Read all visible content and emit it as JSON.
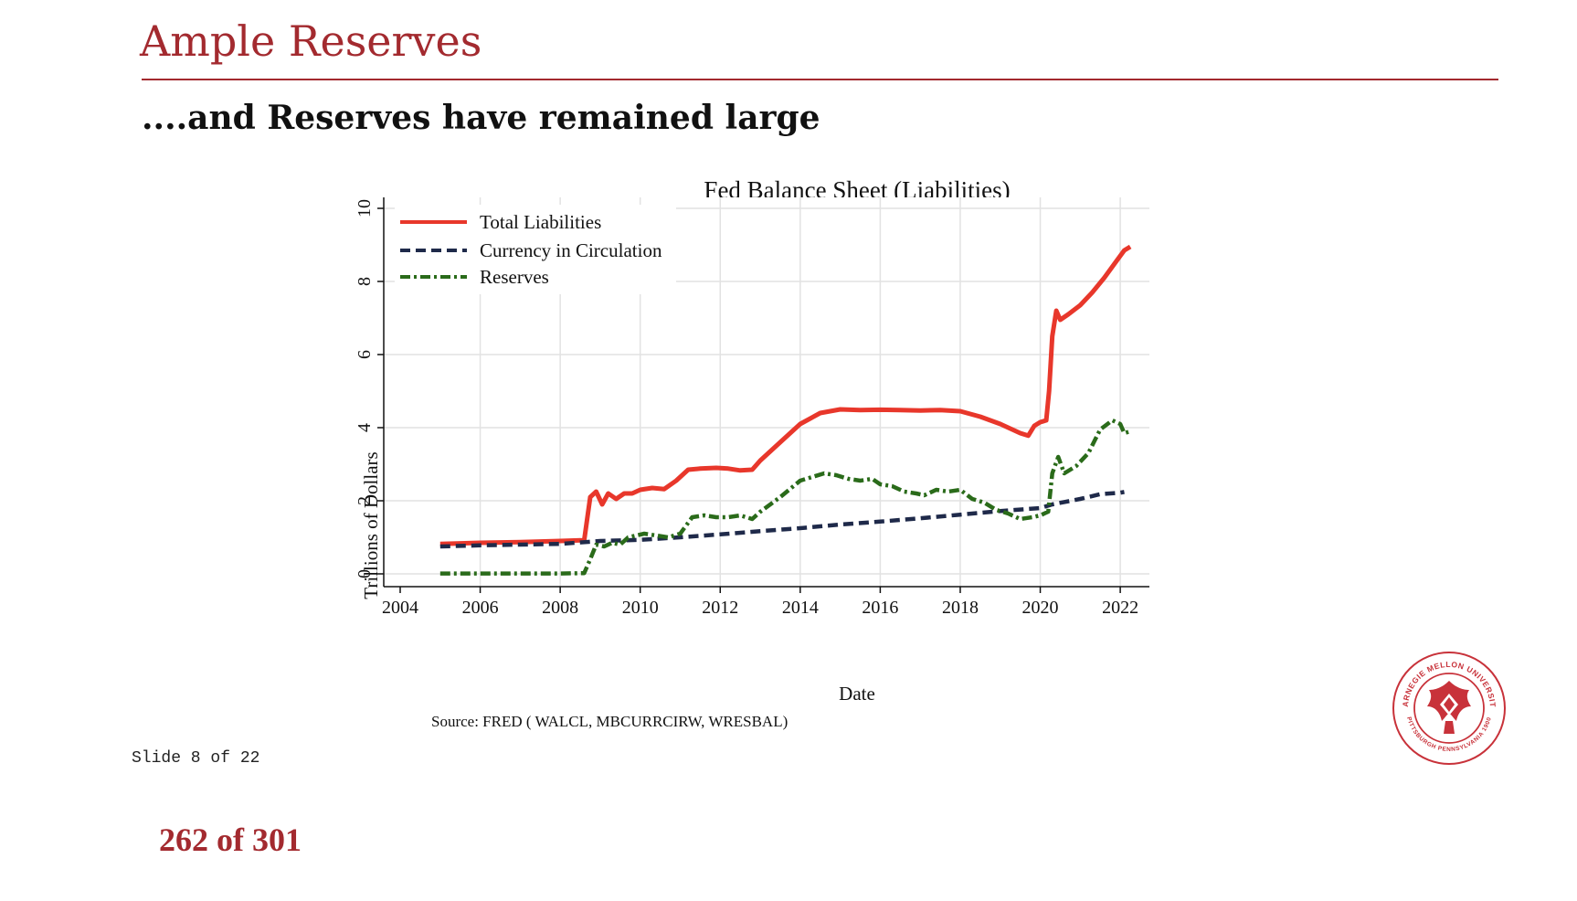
{
  "slide": {
    "title": "Ample Reserves",
    "subtitle": "....and Reserves have remained large",
    "slide_counter": "Slide 8 of 22",
    "page_counter": "262 of 301",
    "accent_color": "#a32a2f",
    "logo": {
      "icon": "cmu-seal-icon",
      "text": "CARNEGIE MELLON UNIVERSITY · PITTSBURGH PENNSYLVANIA 1900"
    }
  },
  "chart_data": {
    "type": "line",
    "title": "Fed Balance Sheet (Liabilities)",
    "xlabel": "Date",
    "ylabel": "Trillions of Dollars",
    "source": "Source: FRED ( WALCL, MBCURRCIRW, WRESBAL)",
    "xlim": [
      2004,
      2022.5
    ],
    "ylim": [
      0,
      10
    ],
    "xticks": [
      2004,
      2006,
      2008,
      2010,
      2012,
      2014,
      2016,
      2018,
      2020,
      2022
    ],
    "yticks": [
      0,
      2,
      4,
      6,
      8,
      10
    ],
    "grid": true,
    "legend_position": "top-left",
    "series": [
      {
        "name": "Total Liabilities",
        "color": "#e8372b",
        "style": "solid",
        "x": [
          2005.0,
          2006.0,
          2007.0,
          2008.0,
          2008.6,
          2008.75,
          2008.9,
          2009.05,
          2009.2,
          2009.4,
          2009.6,
          2009.8,
          2010.0,
          2010.3,
          2010.6,
          2010.9,
          2011.2,
          2011.5,
          2011.9,
          2012.2,
          2012.5,
          2012.8,
          2013.0,
          2013.5,
          2014.0,
          2014.5,
          2015.0,
          2015.5,
          2016.0,
          2016.5,
          2017.0,
          2017.5,
          2018.0,
          2018.5,
          2019.0,
          2019.5,
          2019.7,
          2019.85,
          2020.0,
          2020.15,
          2020.22,
          2020.3,
          2020.4,
          2020.5,
          2020.7,
          2021.0,
          2021.3,
          2021.6,
          2021.9,
          2022.1,
          2022.25
        ],
        "y": [
          0.82,
          0.85,
          0.87,
          0.9,
          0.92,
          2.1,
          2.25,
          1.9,
          2.2,
          2.05,
          2.2,
          2.2,
          2.3,
          2.35,
          2.32,
          2.55,
          2.85,
          2.88,
          2.9,
          2.88,
          2.83,
          2.85,
          3.1,
          3.6,
          4.1,
          4.4,
          4.5,
          4.48,
          4.49,
          4.48,
          4.47,
          4.48,
          4.45,
          4.3,
          4.1,
          3.85,
          3.78,
          4.05,
          4.15,
          4.2,
          5.0,
          6.5,
          7.2,
          6.95,
          7.1,
          7.35,
          7.7,
          8.1,
          8.55,
          8.85,
          8.95
        ]
      },
      {
        "name": "Currency in Circulation",
        "color": "#1f2a4a",
        "style": "dashed",
        "x": [
          2005.0,
          2006.0,
          2007.0,
          2008.0,
          2009.0,
          2010.0,
          2011.0,
          2012.0,
          2013.0,
          2014.0,
          2015.0,
          2016.0,
          2017.0,
          2018.0,
          2019.0,
          2020.0,
          2020.3,
          2021.0,
          2021.5,
          2022.0,
          2022.1
        ],
        "y": [
          0.75,
          0.78,
          0.8,
          0.82,
          0.9,
          0.93,
          1.0,
          1.08,
          1.17,
          1.25,
          1.35,
          1.43,
          1.52,
          1.62,
          1.72,
          1.8,
          1.9,
          2.05,
          2.18,
          2.22,
          2.24
        ]
      },
      {
        "name": "Reserves",
        "color": "#2a6b1a",
        "style": "dash-dot",
        "x": [
          2005.0,
          2006.0,
          2007.0,
          2008.0,
          2008.6,
          2008.75,
          2008.9,
          2009.1,
          2009.3,
          2009.5,
          2009.7,
          2009.9,
          2010.1,
          2010.4,
          2010.7,
          2011.0,
          2011.3,
          2011.6,
          2011.9,
          2012.2,
          2012.5,
          2012.8,
          2013.0,
          2013.5,
          2014.0,
          2014.3,
          2014.6,
          2014.9,
          2015.2,
          2015.5,
          2015.8,
          2016.0,
          2016.3,
          2016.6,
          2016.9,
          2017.1,
          2017.4,
          2017.7,
          2018.0,
          2018.3,
          2018.6,
          2018.9,
          2019.2,
          2019.5,
          2019.8,
          2020.0,
          2020.2,
          2020.3,
          2020.45,
          2020.6,
          2020.9,
          2021.2,
          2021.5,
          2021.8,
          2022.0,
          2022.1,
          2022.25
        ],
        "y": [
          0.01,
          0.01,
          0.01,
          0.01,
          0.02,
          0.4,
          0.8,
          0.75,
          0.85,
          0.8,
          1.0,
          1.05,
          1.1,
          1.05,
          1.0,
          1.1,
          1.55,
          1.6,
          1.55,
          1.55,
          1.6,
          1.5,
          1.7,
          2.1,
          2.55,
          2.65,
          2.75,
          2.7,
          2.6,
          2.55,
          2.6,
          2.45,
          2.4,
          2.25,
          2.2,
          2.15,
          2.3,
          2.25,
          2.3,
          2.05,
          1.95,
          1.75,
          1.65,
          1.5,
          1.55,
          1.6,
          1.7,
          2.75,
          3.2,
          2.75,
          2.95,
          3.3,
          3.95,
          4.2,
          4.1,
          3.85,
          3.9
        ]
      }
    ]
  }
}
